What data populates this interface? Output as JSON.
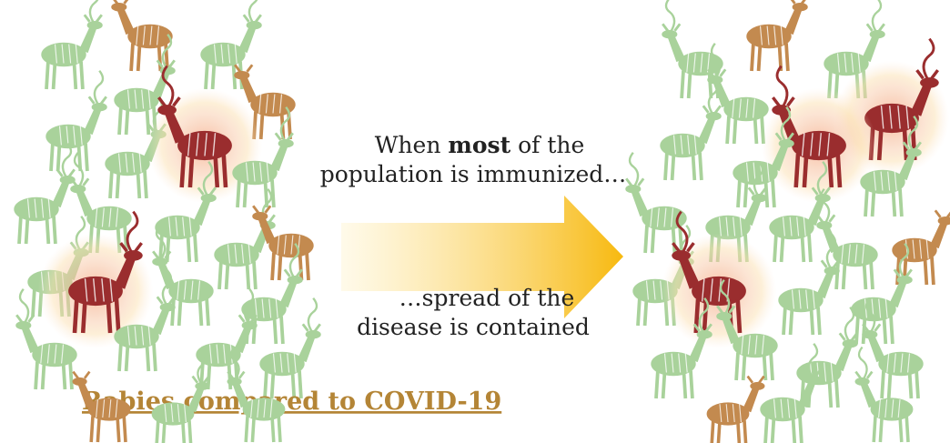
{
  "caption_top": {
    "line1": [
      "When ",
      "most",
      " of the"
    ],
    "line2": "population is immunized…"
  },
  "caption_bottom": {
    "lines": [
      "…spread of the",
      "disease is contained"
    ]
  },
  "title": "Rabies compared to COVID-19"
}
